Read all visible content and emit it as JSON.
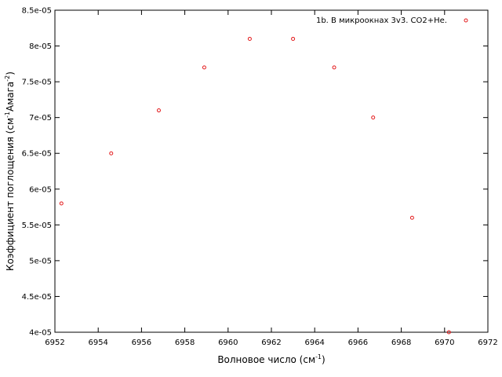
{
  "chart_data": {
    "type": "scatter",
    "title": "",
    "xlabel": "Волновое число (см",
    "xlabel_sup": "-1",
    "xlabel_tail": ")",
    "ylabel": "Коэффициент поглощения (см",
    "ylabel_sup1": "-1",
    "ylabel_mid": "Амага",
    "ylabel_sup2": "-2",
    "ylabel_tail": ")",
    "xlim": [
      6952,
      6972
    ],
    "ylim": [
      4e-05,
      8.5e-05
    ],
    "x_ticks": [
      6952,
      6954,
      6956,
      6958,
      6960,
      6962,
      6964,
      6966,
      6968,
      6970,
      6972
    ],
    "x_tick_labels": [
      "6952",
      "6954",
      "6956",
      "6958",
      "6960",
      "6962",
      "6964",
      "6966",
      "6968",
      "6970",
      "6972"
    ],
    "y_ticks": [
      4e-05,
      4.5e-05,
      5e-05,
      5.5e-05,
      6e-05,
      6.5e-05,
      7e-05,
      7.5e-05,
      8e-05,
      8.5e-05
    ],
    "y_tick_labels": [
      "4e-05",
      "4.5e-05",
      "5e-05",
      "5.5e-05",
      "6e-05",
      "6.5e-05",
      "7e-05",
      "7.5e-05",
      "8e-05",
      "8.5e-05"
    ],
    "grid": false,
    "legend_position": "top-right",
    "series": [
      {
        "name": "1b. В микроокнах 3v3. CO2+He.",
        "color": "#e31a1c",
        "marker": "open-circle",
        "x": [
          6952.3,
          6954.6,
          6956.8,
          6958.9,
          6961.0,
          6963.0,
          6964.9,
          6966.7,
          6968.5,
          6970.2
        ],
        "y": [
          5.8e-05,
          6.5e-05,
          7.1e-05,
          7.7e-05,
          8.1e-05,
          8.1e-05,
          7.7e-05,
          7e-05,
          5.6e-05,
          4e-05
        ]
      }
    ]
  }
}
